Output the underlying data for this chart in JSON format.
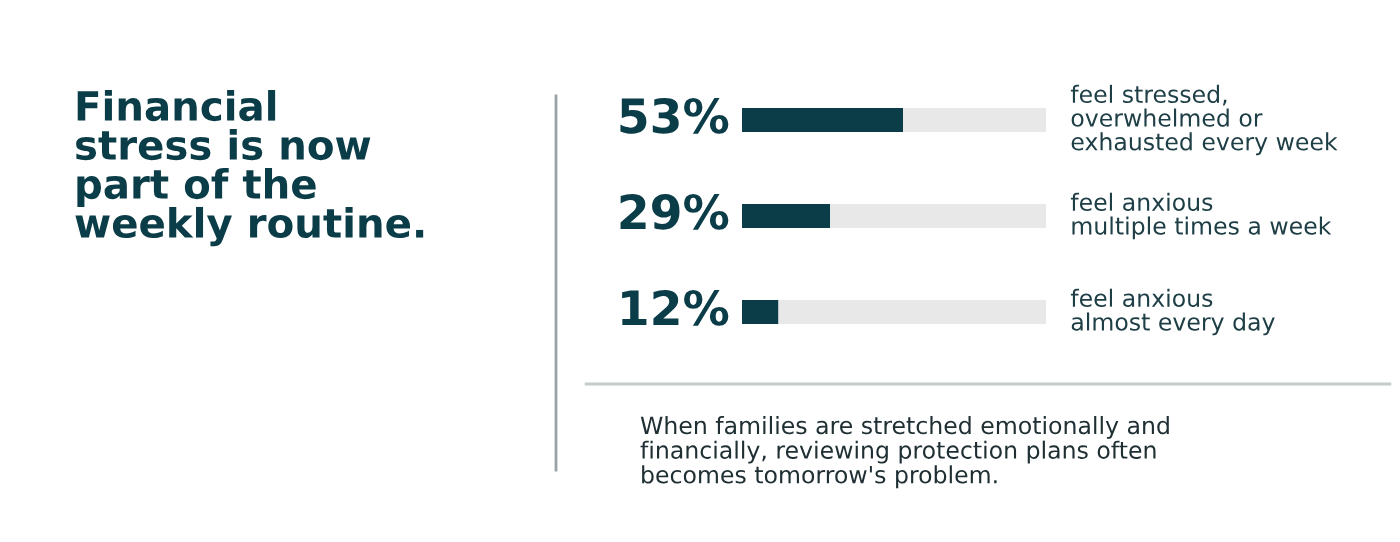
{
  "chart_data": {
    "type": "bar",
    "orientation": "horizontal",
    "stacked": true,
    "title": "Financial\nstress is now\npart of the\nweekly routine.",
    "categories": [
      "feel stressed,\noverwhelmed or\nexhausted every week",
      "feel anxious\nmultiple times a week",
      "feel anxious\nalmost every day"
    ],
    "series": [
      {
        "color": "#0b3d48",
        "values": [
          53,
          29,
          12
        ],
        "value_labels": [
          "53%",
          "29%",
          "12%"
        ]
      },
      {
        "color": "#e8e8e8",
        "values": [
          47,
          71,
          88
        ]
      }
    ],
    "xlim": [
      0,
      100
    ],
    "annotations": [
      "When families are stretched emotionally and\nfinancially, reviewing protection plans often\nbecomes tomorrow's problem."
    ]
  }
}
